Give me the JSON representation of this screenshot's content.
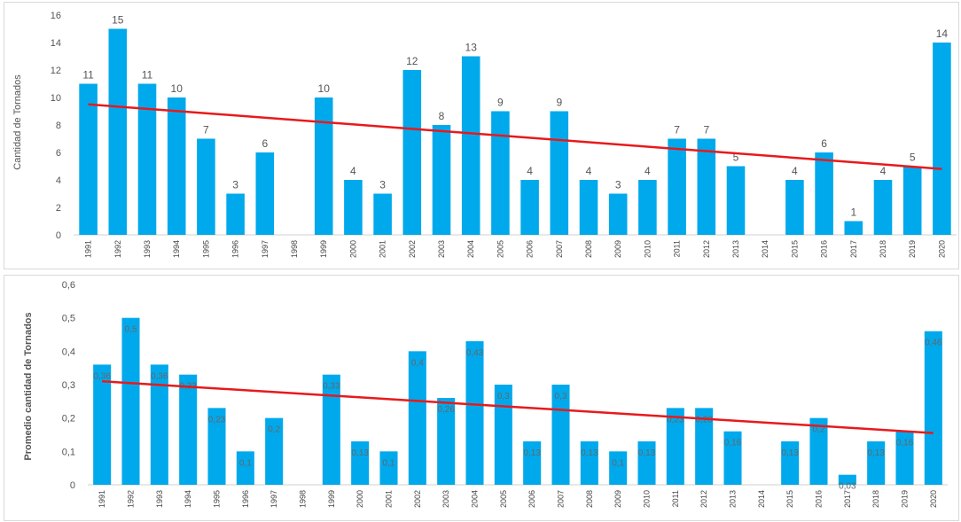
{
  "chart_data": [
    {
      "type": "bar",
      "title": "",
      "xlabel": "",
      "ylabel": "Cantidad de Tornados",
      "ylim": [
        0,
        16
      ],
      "yticks": [
        0,
        2,
        4,
        6,
        8,
        10,
        12,
        14,
        16
      ],
      "grid": false,
      "bar_color": "#00a9ec",
      "trend_color": "#e8191c",
      "categories": [
        "1991",
        "1992",
        "1993",
        "1994",
        "1995",
        "1996",
        "1997",
        "1998",
        "1999",
        "2000",
        "2001",
        "2002",
        "2003",
        "2004",
        "2005",
        "2006",
        "2007",
        "2008",
        "2009",
        "2010",
        "2011",
        "2012",
        "2013",
        "2014",
        "2015",
        "2016",
        "2017",
        "2018",
        "2019",
        "2020"
      ],
      "values": [
        11,
        15,
        11,
        10,
        7,
        3,
        6,
        null,
        10,
        4,
        3,
        12,
        8,
        13,
        9,
        4,
        9,
        4,
        3,
        4,
        7,
        7,
        5,
        null,
        4,
        6,
        1,
        4,
        5,
        14
      ],
      "data_labels": [
        "11",
        "15",
        "11",
        "10",
        "7",
        "3",
        "6",
        "",
        "10",
        "4",
        "3",
        "12",
        "8",
        "13",
        "9",
        "4",
        "9",
        "4",
        "3",
        "4",
        "7",
        "7",
        "5",
        "",
        "4",
        "6",
        "1",
        "4",
        "5",
        "14"
      ],
      "trendline": {
        "start": 9.5,
        "end": 4.8
      }
    },
    {
      "type": "bar",
      "title": "",
      "xlabel": "",
      "ylabel": "Promedio cantidad de Tornados",
      "ylim": [
        0,
        0.6
      ],
      "yticks": [
        "0",
        "0,1",
        "0,2",
        "0,3",
        "0,4",
        "0,5",
        "0,6"
      ],
      "grid": false,
      "bar_color": "#00a9ec",
      "trend_color": "#e8191c",
      "categories": [
        "1991",
        "1992",
        "1993",
        "1994",
        "1995",
        "1996",
        "1997",
        "1998",
        "1999",
        "2000",
        "2001",
        "2002",
        "2003",
        "2004",
        "2005",
        "2006",
        "2007",
        "2008",
        "2009",
        "2010",
        "2011",
        "2012",
        "2013",
        "2014",
        "2015",
        "2016",
        "2017",
        "2018",
        "2019",
        "2020"
      ],
      "values": [
        0.36,
        0.5,
        0.36,
        0.33,
        0.23,
        0.1,
        0.2,
        null,
        0.33,
        0.13,
        0.1,
        0.4,
        0.26,
        0.43,
        0.3,
        0.13,
        0.3,
        0.13,
        0.1,
        0.13,
        0.23,
        0.23,
        0.16,
        null,
        0.13,
        0.2,
        0.03,
        0.13,
        0.16,
        0.46
      ],
      "data_labels": [
        "0,36",
        "0,5",
        "0,36",
        "0,33",
        "0,23",
        "0,1",
        "0,2",
        "",
        "0,33",
        "0,13",
        "0,1",
        "0,4",
        "0,26",
        "0,43",
        "0,3",
        "0,13",
        "0,3",
        "0,13",
        "0,1",
        "0,13",
        "0,23",
        "0,23",
        "0,16",
        "",
        "0,13",
        "0,2",
        "0,03",
        "0,13",
        "0,16",
        "0,46"
      ],
      "trendline": {
        "start": 0.31,
        "end": 0.155
      }
    }
  ]
}
